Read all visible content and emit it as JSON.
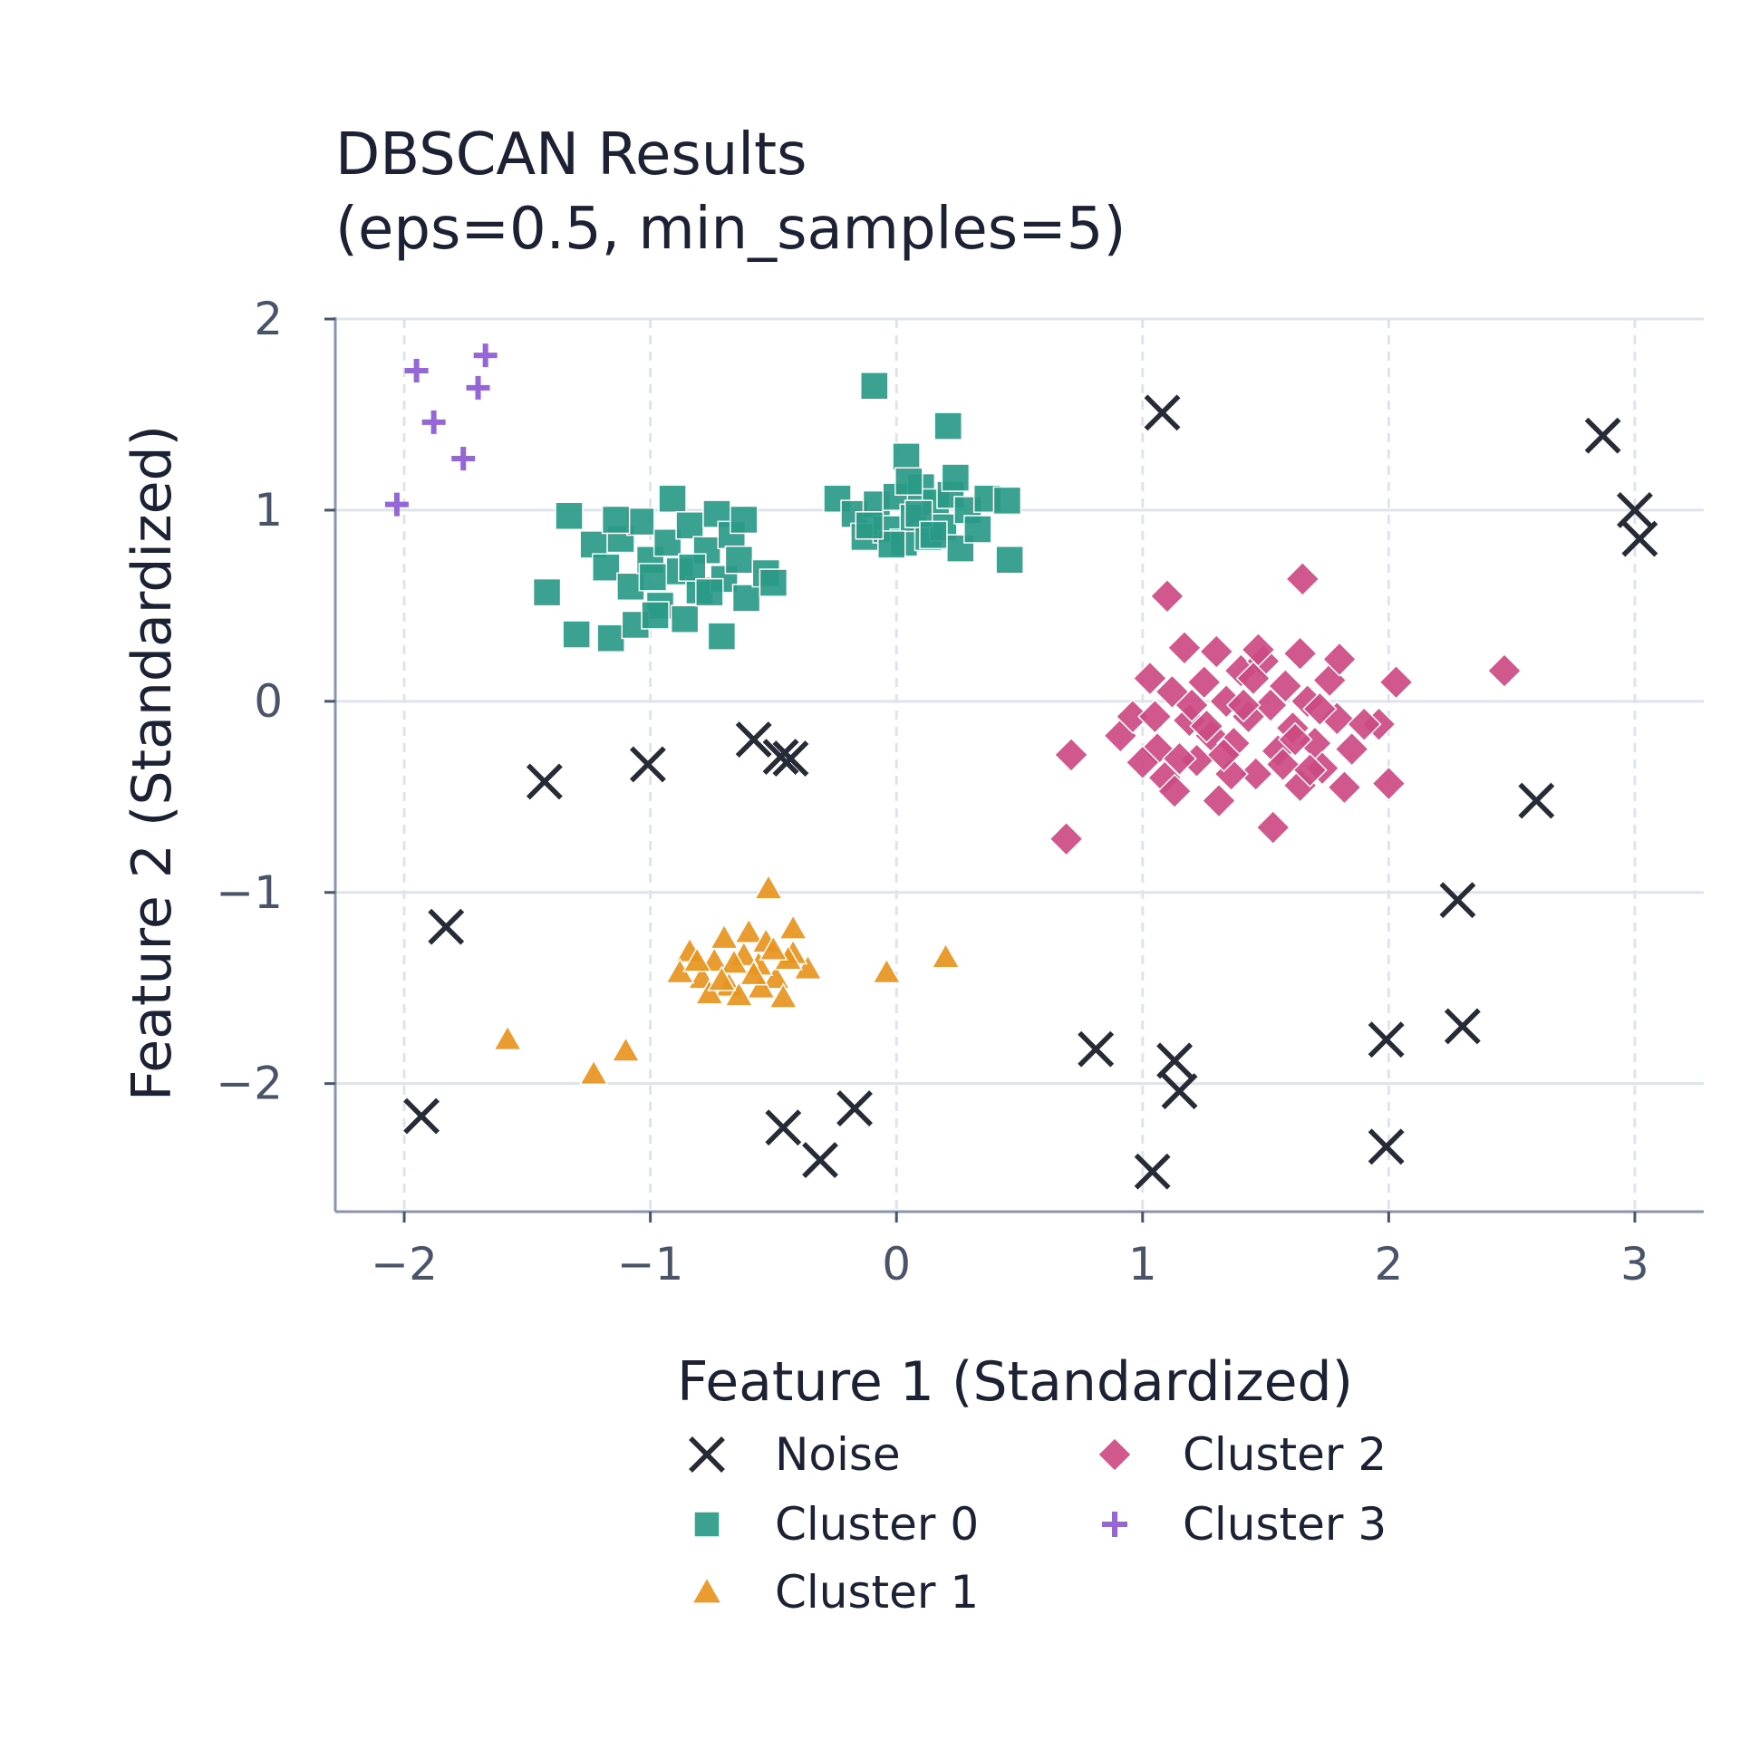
{
  "chart_data": {
    "type": "scatter",
    "title": [
      "DBSCAN Results",
      "(eps=0.5, min_samples=5)"
    ],
    "xlabel": "Feature 1 (Standardized)",
    "ylabel": "Feature 2 (Standardized)",
    "xlim": [
      -2.28,
      3.28
    ],
    "ylim": [
      -2.67,
      2.0
    ],
    "xticks": [
      -2,
      -1,
      0,
      1,
      2,
      3
    ],
    "yticks": [
      -2,
      -1,
      0,
      1,
      2
    ],
    "xtick_labels": [
      "−2",
      "−1",
      "0",
      "1",
      "2",
      "3"
    ],
    "ytick_labels": [
      "−2",
      "−1",
      "0",
      "1",
      "2"
    ],
    "grid": true,
    "legend_position": "below",
    "series": [
      {
        "name": "Noise",
        "marker": "x",
        "color": "#262b36",
        "points": [
          [
            1.08,
            1.51
          ],
          [
            2.87,
            1.39
          ],
          [
            3.0,
            1.0
          ],
          [
            3.02,
            0.85
          ],
          [
            -1.43,
            -0.42
          ],
          [
            -1.01,
            -0.33
          ],
          [
            -0.58,
            -0.2
          ],
          [
            -0.47,
            -0.29
          ],
          [
            -0.43,
            -0.3
          ],
          [
            2.6,
            -0.52
          ],
          [
            2.28,
            -1.04
          ],
          [
            -1.83,
            -1.18
          ],
          [
            2.3,
            -1.7
          ],
          [
            0.81,
            -1.82
          ],
          [
            1.13,
            -1.88
          ],
          [
            1.15,
            -2.04
          ],
          [
            1.99,
            -1.77
          ],
          [
            -1.93,
            -2.17
          ],
          [
            -0.46,
            -2.23
          ],
          [
            -0.31,
            -2.4
          ],
          [
            -0.17,
            -2.13
          ],
          [
            1.99,
            -2.33
          ],
          [
            1.04,
            -2.46
          ]
        ]
      },
      {
        "name": "Cluster 0",
        "marker": "square",
        "color": "#2a9a88",
        "points": [
          [
            -1.33,
            0.97
          ],
          [
            -1.42,
            0.57
          ],
          [
            -1.3,
            0.35
          ],
          [
            -1.16,
            0.33
          ],
          [
            -1.23,
            0.82
          ],
          [
            -1.18,
            0.7
          ],
          [
            -1.12,
            0.85
          ],
          [
            -1.08,
            0.6
          ],
          [
            -1.04,
            0.94
          ],
          [
            -1.0,
            0.74
          ],
          [
            -0.96,
            0.5
          ],
          [
            -0.93,
            0.83
          ],
          [
            -0.91,
            1.06
          ],
          [
            -0.88,
            0.68
          ],
          [
            -0.84,
            0.92
          ],
          [
            -0.8,
            0.58
          ],
          [
            -0.77,
            0.79
          ],
          [
            -0.73,
            0.98
          ],
          [
            -0.7,
            0.64
          ],
          [
            -0.67,
            0.87
          ],
          [
            -0.64,
            0.74
          ],
          [
            -0.61,
            0.54
          ],
          [
            -0.71,
            0.34
          ],
          [
            -0.53,
            0.67
          ],
          [
            -0.5,
            0.62
          ],
          [
            -1.06,
            0.4
          ],
          [
            -0.98,
            0.45
          ],
          [
            -0.86,
            0.43
          ],
          [
            -1.14,
            0.95
          ],
          [
            -0.99,
            0.65
          ],
          [
            -0.83,
            0.7
          ],
          [
            -0.76,
            0.57
          ],
          [
            -0.62,
            0.95
          ],
          [
            -0.09,
            1.65
          ],
          [
            0.21,
            1.44
          ],
          [
            0.04,
            1.28
          ],
          [
            -0.24,
            1.06
          ],
          [
            -0.17,
            0.98
          ],
          [
            -0.13,
            0.86
          ],
          [
            -0.08,
            1.03
          ],
          [
            -0.04,
            0.9
          ],
          [
            0.0,
            1.07
          ],
          [
            0.03,
            0.83
          ],
          [
            0.07,
            0.96
          ],
          [
            0.1,
            1.12
          ],
          [
            0.13,
            0.86
          ],
          [
            0.16,
            1.04
          ],
          [
            0.19,
            0.91
          ],
          [
            0.22,
            1.08
          ],
          [
            0.26,
            0.8
          ],
          [
            0.29,
            1.0
          ],
          [
            0.33,
            0.9
          ],
          [
            0.37,
            1.06
          ],
          [
            0.45,
            1.05
          ],
          [
            0.46,
            0.74
          ],
          [
            0.24,
            1.17
          ],
          [
            -0.02,
            0.82
          ],
          [
            0.09,
            0.98
          ],
          [
            0.15,
            0.87
          ],
          [
            0.05,
            1.15
          ],
          [
            -0.11,
            0.92
          ]
        ]
      },
      {
        "name": "Cluster 1",
        "marker": "triangle",
        "color": "#e7951e",
        "points": [
          [
            -0.52,
            -0.98
          ],
          [
            -0.42,
            -1.19
          ],
          [
            -0.36,
            -1.4
          ],
          [
            -0.42,
            -1.32
          ],
          [
            -0.49,
            -1.45
          ],
          [
            -0.56,
            -1.38
          ],
          [
            -0.62,
            -1.33
          ],
          [
            -0.68,
            -1.49
          ],
          [
            -0.74,
            -1.36
          ],
          [
            -0.79,
            -1.45
          ],
          [
            -0.84,
            -1.31
          ],
          [
            -0.88,
            -1.42
          ],
          [
            -0.7,
            -1.24
          ],
          [
            -0.6,
            -1.21
          ],
          [
            -0.55,
            -1.5
          ],
          [
            -0.46,
            -1.55
          ],
          [
            -0.64,
            -1.54
          ],
          [
            -0.76,
            -1.53
          ],
          [
            -0.53,
            -1.26
          ],
          [
            -0.66,
            -1.37
          ],
          [
            -0.71,
            -1.46
          ],
          [
            -0.81,
            -1.36
          ],
          [
            -0.44,
            -1.35
          ],
          [
            -0.58,
            -1.43
          ],
          [
            -0.5,
            -1.3
          ],
          [
            -0.04,
            -1.42
          ],
          [
            0.2,
            -1.34
          ],
          [
            -1.58,
            -1.77
          ],
          [
            -1.1,
            -1.83
          ],
          [
            -1.23,
            -1.95
          ]
        ]
      },
      {
        "name": "Cluster 2",
        "marker": "diamond",
        "color": "#cc4a82",
        "points": [
          [
            1.1,
            0.55
          ],
          [
            1.65,
            0.64
          ],
          [
            2.03,
            0.1
          ],
          [
            2.47,
            0.16
          ],
          [
            0.71,
            -0.28
          ],
          [
            0.69,
            -0.72
          ],
          [
            1.53,
            -0.66
          ],
          [
            2.0,
            -0.43
          ],
          [
            1.96,
            -0.12
          ],
          [
            0.91,
            -0.18
          ],
          [
            0.96,
            -0.08
          ],
          [
            1.03,
            0.12
          ],
          [
            1.06,
            -0.25
          ],
          [
            1.09,
            -0.4
          ],
          [
            1.13,
            -0.47
          ],
          [
            1.12,
            0.05
          ],
          [
            1.17,
            0.28
          ],
          [
            1.19,
            -0.1
          ],
          [
            1.22,
            -0.31
          ],
          [
            1.25,
            0.1
          ],
          [
            1.28,
            -0.18
          ],
          [
            1.31,
            -0.52
          ],
          [
            1.34,
            0.0
          ],
          [
            1.37,
            -0.22
          ],
          [
            1.4,
            0.16
          ],
          [
            1.43,
            -0.08
          ],
          [
            1.46,
            -0.38
          ],
          [
            1.49,
            0.21
          ],
          [
            1.52,
            -0.02
          ],
          [
            1.55,
            -0.26
          ],
          [
            1.58,
            0.08
          ],
          [
            1.61,
            -0.14
          ],
          [
            1.64,
            -0.44
          ],
          [
            1.67,
            0.0
          ],
          [
            1.7,
            -0.22
          ],
          [
            1.73,
            -0.35
          ],
          [
            1.76,
            0.11
          ],
          [
            1.79,
            -0.09
          ],
          [
            1.82,
            -0.45
          ],
          [
            1.85,
            -0.25
          ],
          [
            1.8,
            0.22
          ],
          [
            1.64,
            0.25
          ],
          [
            1.47,
            0.27
          ],
          [
            1.3,
            0.26
          ],
          [
            1.05,
            -0.08
          ],
          [
            1.15,
            -0.3
          ],
          [
            1.36,
            -0.38
          ],
          [
            1.57,
            -0.33
          ],
          [
            1.72,
            -0.04
          ],
          [
            1.9,
            -0.12
          ],
          [
            1.26,
            -0.13
          ],
          [
            1.41,
            -0.02
          ],
          [
            1.62,
            -0.2
          ],
          [
            1.0,
            -0.32
          ],
          [
            1.2,
            -0.02
          ],
          [
            1.68,
            -0.36
          ],
          [
            1.45,
            0.12
          ],
          [
            1.33,
            -0.28
          ]
        ]
      },
      {
        "name": "Cluster 3",
        "marker": "plus",
        "color": "#9466d8",
        "points": [
          [
            -1.95,
            1.73
          ],
          [
            -1.67,
            1.81
          ],
          [
            -1.7,
            1.64
          ],
          [
            -1.88,
            1.46
          ],
          [
            -1.76,
            1.27
          ],
          [
            -2.03,
            1.03
          ]
        ]
      }
    ]
  }
}
